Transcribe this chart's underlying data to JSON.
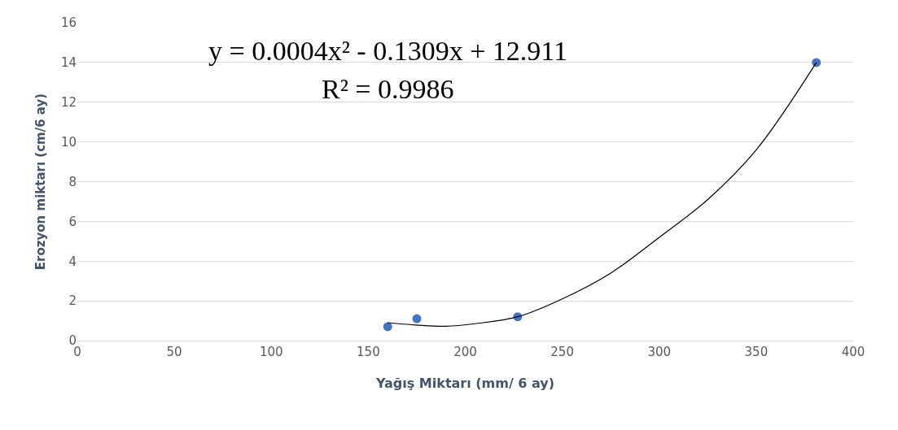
{
  "chart_data": {
    "type": "scatter",
    "xlabel": "Yağış Miktarı (mm/ 6 ay)",
    "ylabel": "Erozyon miktarı (cm/6 ay)",
    "xlim": [
      0,
      400
    ],
    "xticks": [
      0,
      50,
      100,
      150,
      200,
      250,
      300,
      350,
      400
    ],
    "ylim": [
      0,
      16
    ],
    "yticks": [
      0,
      2,
      4,
      6,
      8,
      10,
      12,
      14,
      16
    ],
    "grid": "y",
    "annotations": [
      "y = 0.0004x² - 0.1309x + 12.911",
      "R² = 0.9986"
    ],
    "series": [
      {
        "type": "scatter",
        "marker": "circle",
        "color": "#4472c4",
        "x": [
          160,
          175,
          227,
          381
        ],
        "values": [
          0.7,
          1.1,
          1.2,
          14
        ]
      },
      {
        "type": "line",
        "marker": "none",
        "color": "#000000",
        "line_style": "solid",
        "x": [
          160,
          175,
          190,
          205,
          227,
          250,
          275,
          300,
          325,
          350,
          381
        ],
        "values": [
          0.9,
          0.78,
          0.72,
          0.85,
          1.2,
          2.1,
          3.4,
          5.2,
          7.1,
          9.6,
          14.0
        ]
      }
    ]
  }
}
